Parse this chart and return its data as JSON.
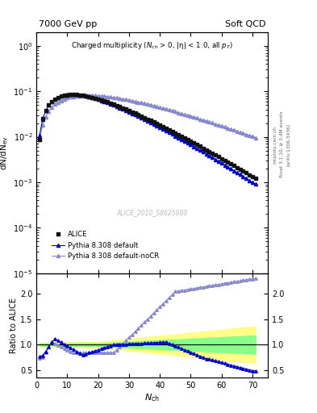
{
  "title_left": "7000 GeV pp",
  "title_right": "Soft QCD",
  "right_label_1": "mcplots.cern.ch",
  "right_label_2": "Rivet 3.1.10, ≥ 3.4M events",
  "right_label_3": "[arXiv:1306.3436]",
  "watermark": "ALICE_2010_S8625980",
  "ylabel_main": "dN/dN_{ev}",
  "ylabel_ratio": "Ratio to ALICE",
  "xlabel": "N_{ch}",
  "xlim": [
    0,
    75
  ],
  "ylim_main": [
    1e-05,
    2.0
  ],
  "ylim_ratio": [
    0.35,
    2.4
  ],
  "ratio_yticks": [
    0.5,
    1.0,
    1.5,
    2.0
  ],
  "legend_entries": [
    "ALICE",
    "Pythia 8.308 default",
    "Pythia 8.308 default-noCR"
  ],
  "alice_color": "#111111",
  "pythia_default_color": "#0000cc",
  "pythia_nocr_color": "#8888cc",
  "band_yellow": "#ffff88",
  "band_green": "#88ff88"
}
